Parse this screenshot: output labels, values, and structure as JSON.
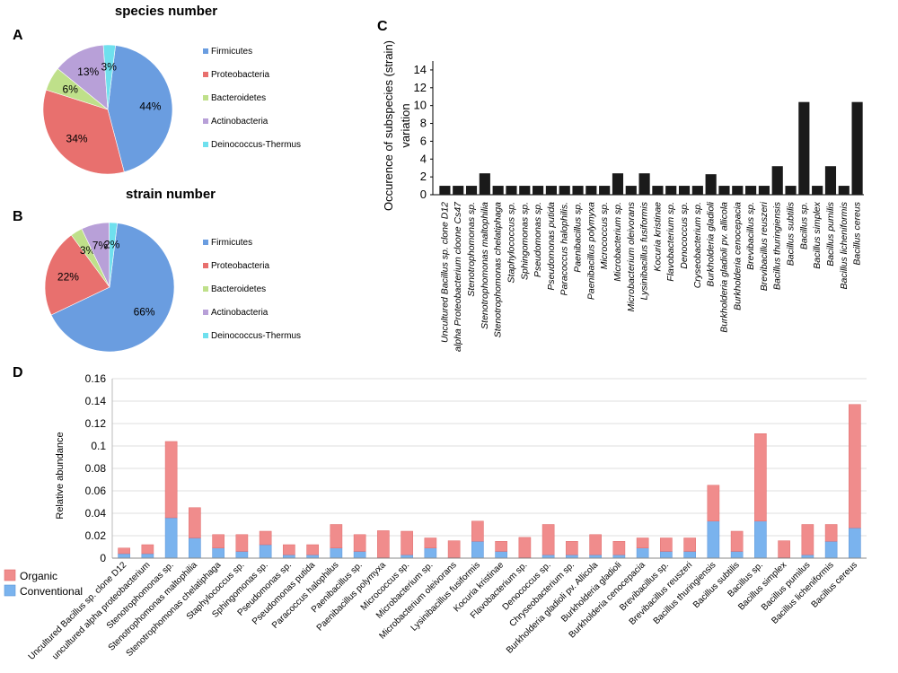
{
  "panels": {
    "a": "A",
    "b": "B",
    "c": "C",
    "d": "D"
  },
  "colors": {
    "firmicutes": "#6a9de0",
    "proteobacteria": "#e8706e",
    "bacteroidetes": "#bfe08a",
    "actinobacteria": "#b8a0d8",
    "deinococcus": "#6fe0ee",
    "bar_c": "#1a1a1a",
    "organic": "#f08c8c",
    "conventional": "#7ab3ee"
  },
  "chart_data": [
    {
      "type": "pie",
      "panel": "A",
      "title": "species number",
      "slices": [
        {
          "label": "Firmicutes",
          "value": 44,
          "text": "44%",
          "color_key": "firmicutes"
        },
        {
          "label": "Proteobacteria",
          "value": 34,
          "text": "34%",
          "color_key": "proteobacteria"
        },
        {
          "label": "Bacteroidetes",
          "value": 6,
          "text": "6%",
          "color_key": "bacteroidetes"
        },
        {
          "label": "Actinobacteria",
          "value": 13,
          "text": "13%",
          "color_key": "actinobacteria"
        },
        {
          "label": "Deinococcus-Thermus",
          "value": 3,
          "text": "3%",
          "color_key": "deinococcus"
        }
      ]
    },
    {
      "type": "pie",
      "panel": "B",
      "title": "strain number",
      "slices": [
        {
          "label": "Firmicutes",
          "value": 66,
          "text": "66%",
          "color_key": "firmicutes"
        },
        {
          "label": "Proteobacteria",
          "value": 22,
          "text": "22%",
          "color_key": "proteobacteria"
        },
        {
          "label": "Bacteroidetes",
          "value": 3,
          "text": "3%",
          "color_key": "bacteroidetes"
        },
        {
          "label": "Actinobacteria",
          "value": 7,
          "text": "7%",
          "color_key": "actinobacteria"
        },
        {
          "label": "Deinococcus-Thermus",
          "value": 2,
          "text": "2%",
          "color_key": "deinococcus"
        }
      ]
    },
    {
      "type": "bar",
      "panel": "C",
      "ylabel_lines": [
        "Occurence of subspecies (strain)",
        "variation"
      ],
      "ylim": [
        0,
        15
      ],
      "yticks": [
        0,
        2,
        4,
        6,
        8,
        10,
        12,
        14
      ],
      "categories": [
        "Uncultured Bacillus sp. clone D12",
        "alpha Proteobacterium cloone Cs47",
        "Stenotrophomonas sp.",
        "Stenotrophomonas maltophilia",
        "Stenotrophomonas chelatiphaga",
        "Staphylococcus sp.",
        "Sphingomonas sp.",
        "Pseudomonas sp.",
        "Pseudomonas putida",
        "Paracoccus halophilis.",
        "Paenibacillus sp.",
        "Paenibacillus polymyxa",
        "Micrococcus sp.",
        "Microbacterium sp.",
        "Microbacterium oleivorans",
        "Lysinibacillus fusiformis",
        "Kocuria kristinae",
        "Flavobacterium sp.",
        "Denococcus sp.",
        "Cryseobacterium sp.",
        "Burkholderia gladioli",
        "Burkholderia gladioli pv. allicola",
        "Burkholderia cenocepacia",
        "Brevibacillus sp.",
        "Brevibacillus reuszeri",
        "Bacillus thuringiensis",
        "Bacillus subtilis",
        "Bacillus sp.",
        "Bacillus simplex",
        "Bacillus pumilis",
        "Bacillus licheniformis",
        "Bacillus cereus"
      ],
      "values": [
        1,
        1,
        1,
        2.4,
        1,
        1,
        1,
        1,
        1,
        1,
        1,
        1,
        1,
        2.4,
        1,
        2.4,
        1,
        1,
        1,
        1,
        2.3,
        1,
        1,
        1,
        1,
        3.2,
        1,
        10.4,
        1,
        3.2,
        1,
        10.4
      ]
    },
    {
      "type": "bar",
      "stacked": true,
      "panel": "D",
      "ylabel": "Relative abundance",
      "ylim": [
        0,
        0.16
      ],
      "yticks": [
        "0",
        "0.02",
        "0.04",
        "0.06",
        "0.08",
        "0.1",
        "0.12",
        "0.14",
        "0.16"
      ],
      "legend": [
        {
          "label": "Organic",
          "color_key": "organic"
        },
        {
          "label": "Conventional",
          "color_key": "conventional"
        }
      ],
      "categories": [
        "Uncultured Bacillus sp. clone D12",
        "uncultured alpha proteobacterium",
        "Stenotrophomonas sp.",
        "Stenotrophomonas maltophilia",
        "Stenotrophomonas chelatiphaga",
        "Staphylococcus sp.",
        "Sphingomonas sp.",
        "Pseudomonas sp.",
        "Pseudomonas putida",
        "Paracoccus halophilus",
        "Paenibacillus sp.",
        "Paenibacillus polymyxa",
        "Micrococcus sp.",
        "Microbacterium sp.",
        "Microbacterium oleivorans",
        "Lysinibacillus fusiformis",
        "Kocuria kristinae",
        "Flavobacterium sp.",
        "Denococcus sp.",
        "Chryseobacterium sp.",
        "Burkholderia gladioli pv. Allicola",
        "Burkholderia gladioli",
        "Burkholderia cenocepacia",
        "Brevibacillus sp.",
        "Brevibacillus reuszeri",
        "Bacillus thuringiensis",
        "Bacillus subtilis",
        "Bacillus sp.",
        "Bacillus simplex",
        "Bacillus pumilus",
        "Bacillus licheniformis",
        "Bacillus cereus"
      ],
      "series": [
        {
          "name": "Conventional",
          "color_key": "conventional",
          "values": [
            0.004,
            0.004,
            0.036,
            0.018,
            0.009,
            0.006,
            0.012,
            0.003,
            0.003,
            0.009,
            0.006,
            0.0005,
            0.003,
            0.009,
            0.0005,
            0.015,
            0.006,
            0.0005,
            0.003,
            0.003,
            0.003,
            0.003,
            0.009,
            0.006,
            0.006,
            0.033,
            0.006,
            0.033,
            0.0005,
            0.003,
            0.015,
            0.027
          ]
        },
        {
          "name": "Organic",
          "color_key": "organic",
          "values": [
            0.005,
            0.008,
            0.068,
            0.027,
            0.012,
            0.015,
            0.012,
            0.009,
            0.009,
            0.021,
            0.015,
            0.024,
            0.021,
            0.009,
            0.015,
            0.018,
            0.009,
            0.018,
            0.027,
            0.012,
            0.018,
            0.012,
            0.009,
            0.012,
            0.012,
            0.032,
            0.018,
            0.078,
            0.015,
            0.027,
            0.015,
            0.11
          ]
        }
      ]
    }
  ]
}
